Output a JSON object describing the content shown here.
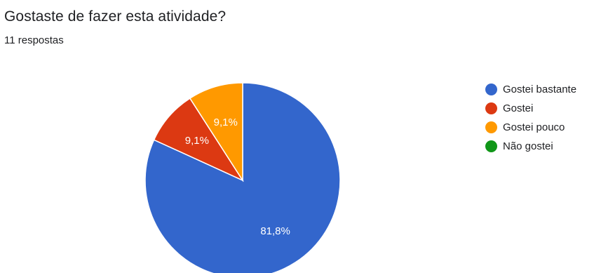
{
  "header": {
    "title": "Gostaste de fazer esta atividade?",
    "responses": "11 respostas"
  },
  "chart_data": {
    "type": "pie",
    "title": "Gostaste de fazer esta atividade?",
    "categories": [
      "Gostei bastante",
      "Gostei",
      "Gostei pouco",
      "Não gostei"
    ],
    "values": [
      9,
      1,
      1,
      0
    ],
    "percent_labels": [
      "81,8%",
      "9,1%",
      "9,1%",
      ""
    ],
    "colors": [
      "#3366cc",
      "#dc3912",
      "#ff9900",
      "#109618"
    ],
    "legend_position": "right"
  }
}
